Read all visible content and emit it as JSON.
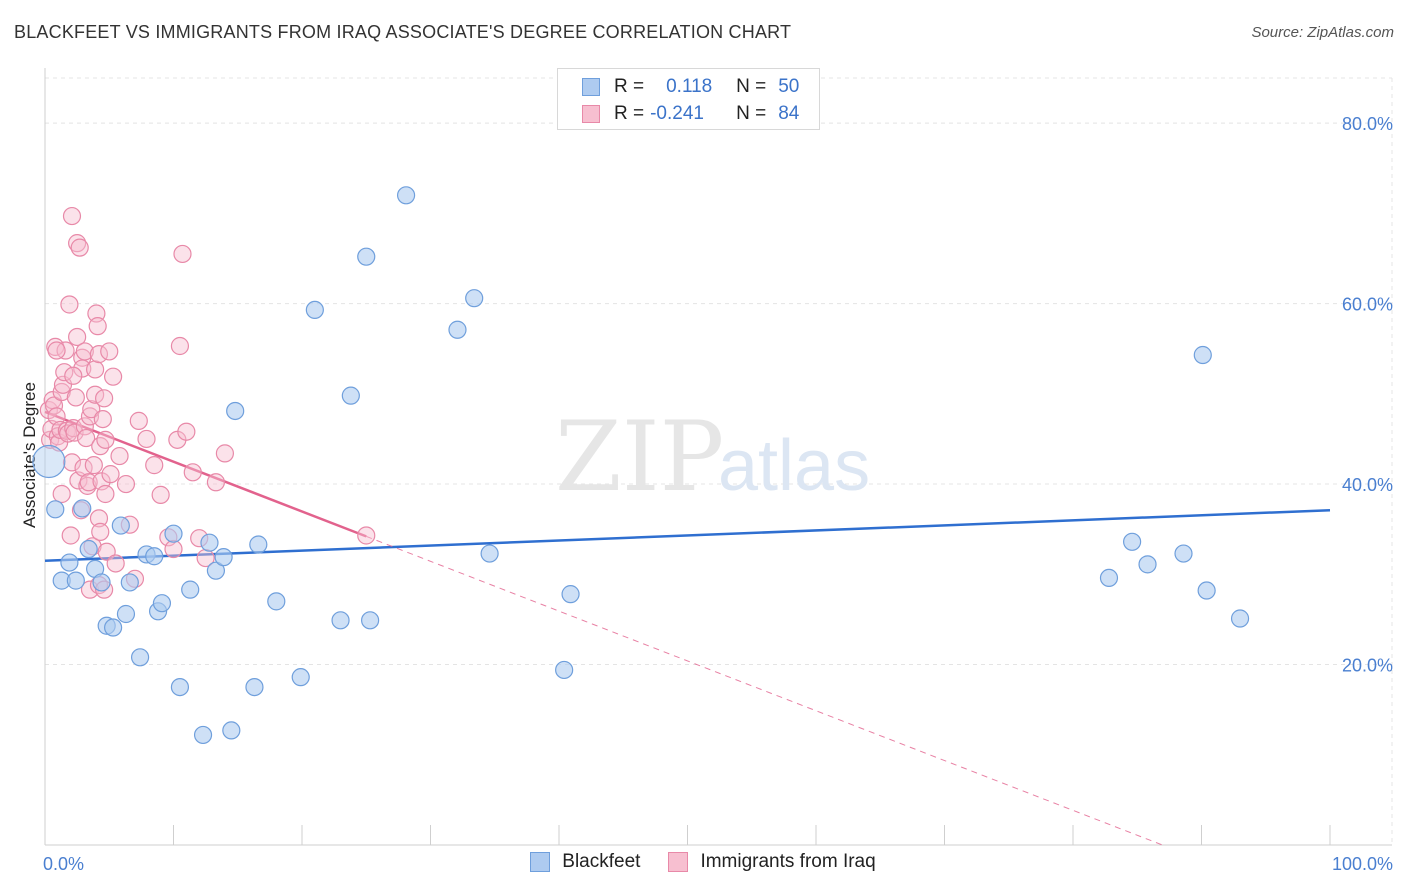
{
  "header": {
    "title": "BLACKFEET VS IMMIGRANTS FROM IRAQ ASSOCIATE'S DEGREE CORRELATION CHART",
    "source": "Source: ZipAtlas.com"
  },
  "watermark": {
    "zip": "ZIP",
    "atlas": "atlas"
  },
  "legend": {
    "series1": {
      "r_label": "R =",
      "r_value": "0.118",
      "n_label": "N =",
      "n_value": "50"
    },
    "series2": {
      "r_label": "R =",
      "r_value": "-0.241",
      "n_label": "N =",
      "n_value": "84"
    }
  },
  "colors": {
    "blue_fill": "#aecbf0",
    "blue_stroke": "#6f9fdc",
    "blue_line": "#2f6fd0",
    "pink_fill": "#f7bfd0",
    "pink_stroke": "#e889a8",
    "pink_line": "#e2628d",
    "axis_text": "#4a7fd0"
  },
  "chart_data": {
    "type": "scatter",
    "title": "BLACKFEET VS IMMIGRANTS FROM IRAQ ASSOCIATE'S DEGREE CORRELATION CHART",
    "xlabel": "",
    "ylabel": "Associate's Degree",
    "xlim": [
      0,
      100
    ],
    "ylim": [
      0,
      85
    ],
    "x_tick_labels": [
      "0.0%",
      "100.0%"
    ],
    "y_ticks": [
      20,
      40,
      60,
      80
    ],
    "y_tick_labels": [
      "20.0%",
      "40.0%",
      "60.0%",
      "80.0%"
    ],
    "grid": true,
    "series": [
      {
        "name": "Blackfeet",
        "r": 0.118,
        "n": 50,
        "trend": {
          "x": [
            0,
            100
          ],
          "y": [
            31.5,
            37.1
          ]
        },
        "points": [
          [
            0.3,
            42.5
          ],
          [
            0.8,
            37.2
          ],
          [
            1.3,
            29.3
          ],
          [
            1.9,
            31.3
          ],
          [
            2.4,
            29.3
          ],
          [
            2.9,
            37.3
          ],
          [
            3.4,
            32.8
          ],
          [
            3.9,
            30.6
          ],
          [
            4.4,
            29.1
          ],
          [
            4.8,
            24.3
          ],
          [
            5.3,
            24.1
          ],
          [
            5.9,
            35.4
          ],
          [
            6.3,
            25.6
          ],
          [
            6.6,
            29.1
          ],
          [
            7.4,
            20.8
          ],
          [
            7.9,
            32.2
          ],
          [
            8.5,
            32.0
          ],
          [
            8.8,
            25.9
          ],
          [
            9.1,
            26.8
          ],
          [
            10.0,
            34.5
          ],
          [
            10.5,
            17.5
          ],
          [
            11.3,
            28.3
          ],
          [
            12.3,
            12.2
          ],
          [
            12.8,
            33.5
          ],
          [
            13.3,
            30.4
          ],
          [
            13.9,
            31.9
          ],
          [
            14.5,
            12.7
          ],
          [
            14.8,
            48.1
          ],
          [
            16.3,
            17.5
          ],
          [
            16.6,
            33.3
          ],
          [
            18.0,
            27.0
          ],
          [
            19.9,
            18.6
          ],
          [
            21.0,
            59.3
          ],
          [
            23.0,
            24.9
          ],
          [
            23.8,
            49.8
          ],
          [
            25.0,
            65.2
          ],
          [
            25.3,
            24.9
          ],
          [
            28.1,
            72.0
          ],
          [
            32.1,
            57.1
          ],
          [
            33.4,
            60.6
          ],
          [
            34.6,
            32.3
          ],
          [
            40.4,
            19.4
          ],
          [
            40.9,
            27.8
          ],
          [
            82.8,
            29.6
          ],
          [
            84.6,
            33.6
          ],
          [
            85.8,
            31.1
          ],
          [
            88.6,
            32.3
          ],
          [
            90.1,
            54.3
          ],
          [
            90.4,
            28.2
          ],
          [
            93.0,
            25.1
          ]
        ]
      },
      {
        "name": "Immigrants from Iraq",
        "r": -0.241,
        "n": 84,
        "trend": {
          "x": [
            0,
            25
          ],
          "y": [
            48.0,
            34.2
          ]
        },
        "trend_dashed": {
          "x": [
            25,
            100
          ],
          "y": [
            34.2,
            -7.2
          ]
        },
        "points": [
          [
            0.3,
            48.2
          ],
          [
            0.4,
            44.9
          ],
          [
            0.5,
            46.1
          ],
          [
            0.6,
            49.3
          ],
          [
            0.7,
            48.7
          ],
          [
            0.8,
            55.2
          ],
          [
            0.9,
            47.5
          ],
          [
            1.0,
            45.3
          ],
          [
            1.1,
            44.6
          ],
          [
            1.2,
            46.0
          ],
          [
            1.3,
            50.2
          ],
          [
            1.4,
            51.0
          ],
          [
            1.5,
            52.4
          ],
          [
            1.6,
            54.8
          ],
          [
            1.7,
            45.9
          ],
          [
            1.8,
            45.6
          ],
          [
            1.9,
            59.9
          ],
          [
            2.0,
            34.3
          ],
          [
            2.1,
            42.4
          ],
          [
            2.2,
            46.2
          ],
          [
            2.3,
            45.7
          ],
          [
            2.4,
            49.6
          ],
          [
            2.5,
            56.3
          ],
          [
            2.5,
            66.7
          ],
          [
            2.6,
            40.4
          ],
          [
            2.7,
            66.2
          ],
          [
            2.8,
            37.1
          ],
          [
            2.9,
            54.0
          ],
          [
            2.9,
            52.8
          ],
          [
            3.0,
            41.8
          ],
          [
            3.1,
            46.4
          ],
          [
            3.1,
            54.7
          ],
          [
            3.2,
            45.1
          ],
          [
            3.3,
            39.8
          ],
          [
            3.4,
            40.2
          ],
          [
            3.5,
            28.3
          ],
          [
            3.5,
            47.5
          ],
          [
            3.6,
            48.3
          ],
          [
            3.7,
            33.1
          ],
          [
            3.8,
            42.1
          ],
          [
            3.9,
            52.7
          ],
          [
            3.9,
            49.9
          ],
          [
            4.0,
            58.9
          ],
          [
            4.1,
            57.5
          ],
          [
            4.2,
            54.4
          ],
          [
            4.2,
            28.8
          ],
          [
            4.2,
            36.2
          ],
          [
            4.3,
            44.2
          ],
          [
            4.3,
            34.7
          ],
          [
            4.4,
            40.3
          ],
          [
            4.5,
            47.2
          ],
          [
            4.6,
            49.5
          ],
          [
            4.6,
            28.3
          ],
          [
            4.7,
            44.9
          ],
          [
            4.7,
            38.9
          ],
          [
            4.8,
            32.5
          ],
          [
            5.0,
            54.7
          ],
          [
            5.1,
            41.1
          ],
          [
            5.3,
            51.9
          ],
          [
            5.5,
            31.2
          ],
          [
            5.8,
            43.1
          ],
          [
            6.3,
            40.0
          ],
          [
            6.6,
            35.5
          ],
          [
            7.0,
            29.5
          ],
          [
            7.3,
            47.0
          ],
          [
            7.9,
            45.0
          ],
          [
            8.5,
            42.1
          ],
          [
            9.0,
            38.8
          ],
          [
            9.6,
            34.1
          ],
          [
            10.0,
            32.8
          ],
          [
            10.3,
            44.9
          ],
          [
            10.5,
            55.3
          ],
          [
            10.7,
            65.5
          ],
          [
            11.0,
            45.8
          ],
          [
            11.5,
            41.3
          ],
          [
            12.0,
            34.0
          ],
          [
            12.5,
            31.8
          ],
          [
            13.3,
            40.2
          ],
          [
            14.0,
            43.4
          ],
          [
            25.0,
            34.3
          ],
          [
            2.2,
            52.0
          ],
          [
            0.9,
            54.8
          ],
          [
            1.3,
            38.9
          ],
          [
            2.1,
            69.7
          ]
        ]
      }
    ]
  },
  "bottom_legend": {
    "items": [
      {
        "label": "Blackfeet"
      },
      {
        "label": "Immigrants from Iraq"
      }
    ]
  }
}
